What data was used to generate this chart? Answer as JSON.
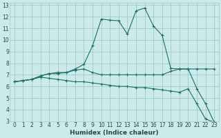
{
  "xlabel": "Humidex (Indice chaleur)",
  "bg_color": "#cdeaea",
  "grid_color": "#9fc8c8",
  "line_color": "#1a6b6b",
  "xlim": [
    -0.5,
    23.5
  ],
  "ylim": [
    3,
    13.2
  ],
  "xticks": [
    0,
    1,
    2,
    3,
    4,
    5,
    6,
    7,
    8,
    9,
    10,
    11,
    12,
    13,
    14,
    15,
    16,
    17,
    18,
    19,
    20,
    21,
    22,
    23
  ],
  "yticks": [
    3,
    4,
    5,
    6,
    7,
    8,
    9,
    10,
    11,
    12,
    13
  ],
  "series": [
    {
      "x": [
        0,
        1,
        2,
        3,
        4,
        5,
        6,
        7,
        8,
        9,
        10,
        11,
        12,
        13,
        14,
        15,
        16,
        17,
        18,
        19,
        20,
        21,
        22,
        23
      ],
      "y": [
        6.4,
        6.5,
        6.6,
        6.9,
        7.1,
        7.2,
        7.2,
        7.5,
        7.9,
        9.5,
        11.8,
        11.7,
        11.65,
        10.5,
        12.5,
        12.75,
        11.2,
        10.4,
        7.55,
        7.5,
        7.5,
        5.8,
        4.5,
        2.9
      ]
    },
    {
      "x": [
        0,
        1,
        2,
        3,
        4,
        5,
        6,
        7,
        8,
        9,
        10,
        11,
        12,
        13,
        14,
        15,
        16,
        17,
        18,
        19,
        20,
        21,
        22,
        23
      ],
      "y": [
        6.4,
        6.5,
        6.6,
        6.9,
        7.1,
        7.1,
        7.2,
        7.4,
        7.5,
        7.2,
        7.0,
        7.0,
        7.0,
        7.0,
        7.0,
        7.0,
        7.0,
        7.0,
        7.3,
        7.5,
        7.5,
        7.5,
        7.5,
        7.5
      ]
    },
    {
      "x": [
        0,
        1,
        2,
        3,
        4,
        5,
        6,
        7,
        8,
        9,
        10,
        11,
        12,
        13,
        14,
        15,
        16,
        17,
        18,
        19,
        20,
        21,
        22,
        23
      ],
      "y": [
        6.4,
        6.5,
        6.6,
        6.8,
        6.7,
        6.6,
        6.5,
        6.4,
        6.4,
        6.3,
        6.2,
        6.1,
        6.0,
        6.0,
        5.9,
        5.9,
        5.8,
        5.7,
        5.6,
        5.5,
        5.8,
        4.5,
        3.2,
        2.9
      ]
    }
  ]
}
